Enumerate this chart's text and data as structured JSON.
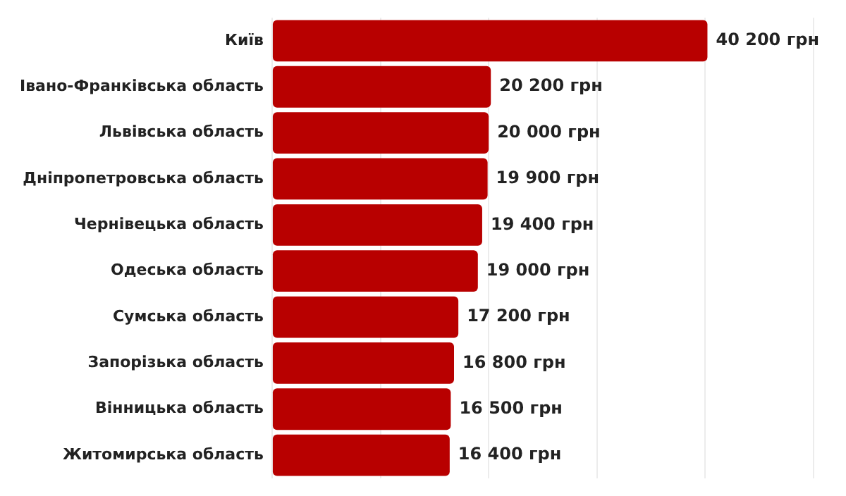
{
  "chart_data": {
    "type": "bar",
    "orientation": "horizontal",
    "categories": [
      "Київ",
      "Івано-Франківська область",
      "Львівська область",
      "Дніпропетровська область",
      "Чернівецька область",
      "Одеська область",
      "Сумська область",
      "Запорізька область",
      "Вінницька область",
      "Житомирська область"
    ],
    "series": [
      {
        "color": "#b80000",
        "values": [
          40200,
          20200,
          20000,
          19900,
          19400,
          19000,
          17200,
          16800,
          16500,
          16400
        ],
        "value_labels": [
          "40 200 грн",
          "20 200 грн",
          "20 000 грн",
          "19 900 грн",
          "19 400 грн",
          "19 000 грн",
          "17 200 грн",
          "16 800 грн",
          "16 500 грн",
          "16 400 грн"
        ]
      }
    ],
    "xlim": [
      0,
      50000
    ],
    "xticks": [
      {
        "value": 0,
        "label": null
      },
      {
        "value": 10000,
        "label": null
      },
      {
        "value": 20000,
        "label": null
      },
      {
        "value": 30000,
        "label": null
      },
      {
        "value": 40000,
        "label": null
      },
      {
        "value": 50000,
        "label": null
      }
    ],
    "grid": "x",
    "tick_labels": "y",
    "legend": false
  }
}
